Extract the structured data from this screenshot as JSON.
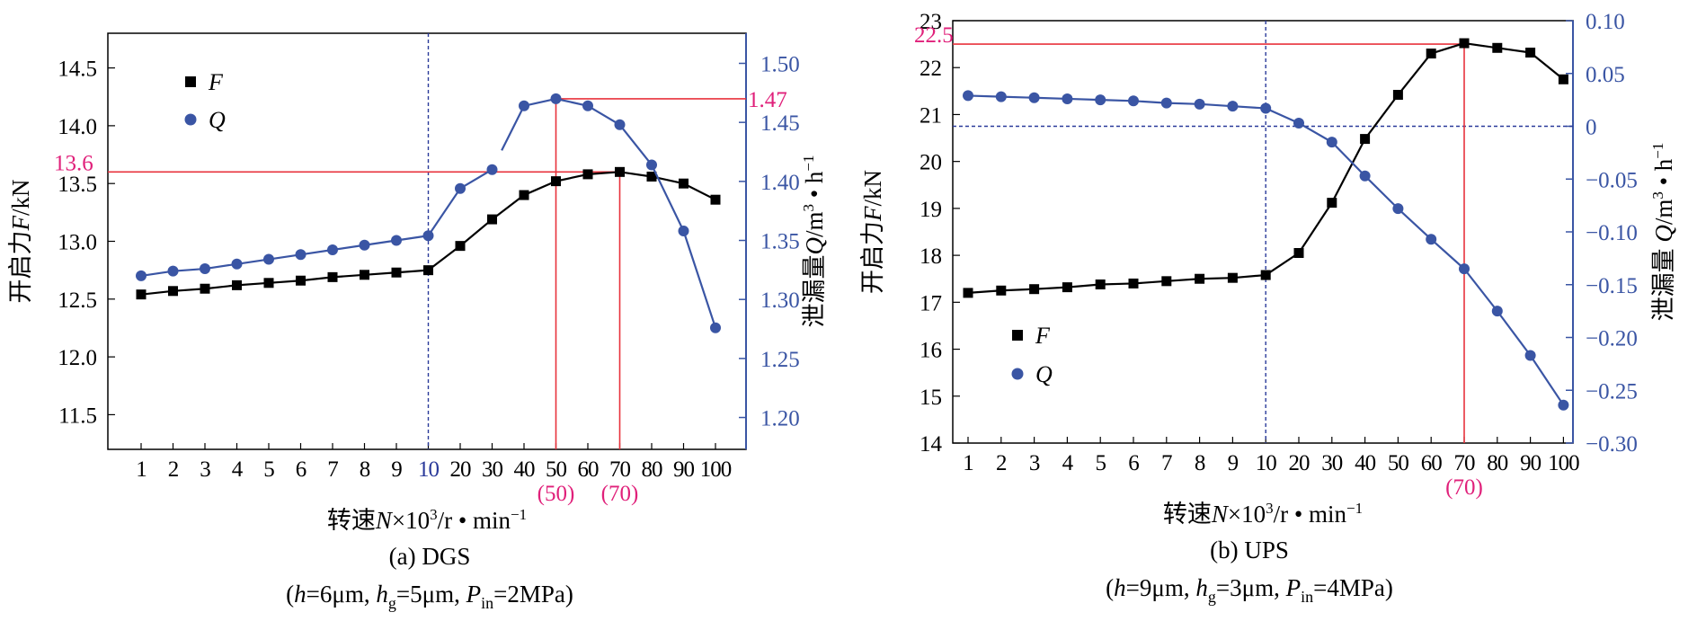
{
  "colors": {
    "f_series": "#000000",
    "q_series": "#3a55a4",
    "ref_line": "#e8323c",
    "ref_label": "#e0207a",
    "right_axis": "#3a55a4",
    "divider": "#2a3a9a"
  },
  "chart_data": [
    {
      "type": "line",
      "caption": "(a) DGS",
      "params": {
        "open": "(",
        "h_var": "h",
        "h_val": "=6μm, ",
        "hg_var": "h",
        "hg_sub": "g",
        "hg_val": "=5μm, ",
        "p_var": "P",
        "p_sub": "in",
        "p_val": "=2MPa)"
      },
      "xlabel": {
        "pre": "转速",
        "var": "N",
        "mid": "×10",
        "sup": "3",
        "post": "/r • min",
        "sup2": "−1"
      },
      "ylabel_left": {
        "pre": "开启力",
        "var": "F",
        "post": "/kN"
      },
      "ylabel_right": {
        "pre": "泄漏量",
        "var": "Q",
        "mid": "/m",
        "sup": "3",
        "post": " • h",
        "sup2": "−1"
      },
      "x_categories": [
        "1",
        "2",
        "3",
        "4",
        "5",
        "6",
        "7",
        "8",
        "9",
        "10",
        "20",
        "30",
        "40",
        "50",
        "60",
        "70",
        "80",
        "90",
        "100"
      ],
      "highlight_category": "10",
      "y_left_ticks": [
        "11.5",
        "12.0",
        "12.5",
        "13.0",
        "13.5",
        "14.0",
        "14.5"
      ],
      "y_left_range": [
        11.2,
        14.8
      ],
      "y_right_ticks": [
        "1.20",
        "1.25",
        "1.30",
        "1.35",
        "1.40",
        "1.45",
        "1.50"
      ],
      "y_right_range": [
        1.173,
        1.5255
      ],
      "legend": [
        {
          "series": "F",
          "label": "F"
        },
        {
          "series": "Q",
          "label": "Q"
        }
      ],
      "legend_position": "top-left",
      "series": [
        {
          "name": "F",
          "axis": "left",
          "marker": "square",
          "values": [
            12.54,
            12.57,
            12.59,
            12.62,
            12.64,
            12.66,
            12.69,
            12.71,
            12.73,
            12.75,
            12.96,
            13.19,
            13.4,
            13.52,
            13.58,
            13.6,
            13.56,
            13.5,
            13.36
          ]
        },
        {
          "name": "Q",
          "axis": "right",
          "marker": "circle",
          "values": [
            1.32,
            1.324,
            1.326,
            1.33,
            1.334,
            1.338,
            1.342,
            1.346,
            1.35,
            1.354,
            1.394,
            1.41,
            1.464,
            1.47,
            1.464,
            1.448,
            1.414,
            1.358,
            1.276
          ],
          "gap_after_category": "30"
        }
      ],
      "ref_lines": {
        "hlines": [
          {
            "axis": "left",
            "value": 13.6,
            "label": "13.6",
            "label_side": "left",
            "from_category": null,
            "to_category": "70"
          },
          {
            "axis": "right",
            "value": 1.47,
            "label": "1.47",
            "label_side": "right",
            "from_category": "50",
            "to_category": null
          }
        ],
        "vlines": [
          {
            "category": "50",
            "label": "(50)",
            "top_series": "Q"
          },
          {
            "category": "70",
            "label": "(70)",
            "top_series": "F"
          }
        ],
        "dashed_vline_category": "10"
      }
    },
    {
      "type": "line",
      "caption": "(b) UPS",
      "params": {
        "open": "(",
        "h_var": "h",
        "h_val": "=9μm, ",
        "hg_var": "h",
        "hg_sub": "g",
        "hg_val": "=3μm, ",
        "p_var": "P",
        "p_sub": "in",
        "p_val": "=4MPa)"
      },
      "xlabel": {
        "pre": "转速",
        "var": "N",
        "mid": "×10",
        "sup": "3",
        "post": "/r • min",
        "sup2": "−1"
      },
      "ylabel_left": {
        "pre": "开启力",
        "var": "F",
        "post": "/kN"
      },
      "ylabel_right": {
        "pre": "泄漏量 ",
        "var": "Q",
        "mid": "/m",
        "sup": "3",
        "post": " • h",
        "sup2": "−1"
      },
      "x_categories": [
        "1",
        "2",
        "3",
        "4",
        "5",
        "6",
        "7",
        "8",
        "9",
        "10",
        "20",
        "30",
        "40",
        "50",
        "60",
        "70",
        "80",
        "90",
        "100"
      ],
      "highlight_category": null,
      "y_left_ticks": [
        "14",
        "15",
        "16",
        "17",
        "18",
        "19",
        "20",
        "21",
        "22",
        "23"
      ],
      "y_left_range": [
        14,
        23
      ],
      "y_right_ticks": [
        "−0.30",
        "−0.25",
        "−0.20",
        "−0.15",
        "−0.10",
        "−0.05",
        "0",
        "0.05",
        "0.10"
      ],
      "y_right_ticks_values": [
        -0.3,
        -0.25,
        -0.2,
        -0.15,
        -0.1,
        -0.05,
        0,
        0.05,
        0.1
      ],
      "y_right_range": [
        -0.3,
        0.1
      ],
      "legend": [
        {
          "series": "F",
          "label": "F"
        },
        {
          "series": "Q",
          "label": "Q"
        }
      ],
      "legend_position": "bottom-left",
      "series": [
        {
          "name": "F",
          "axis": "left",
          "marker": "square",
          "values": [
            17.2,
            17.25,
            17.28,
            17.32,
            17.38,
            17.4,
            17.45,
            17.5,
            17.52,
            17.58,
            18.05,
            19.12,
            20.48,
            21.42,
            22.3,
            22.52,
            22.42,
            22.32,
            21.75
          ]
        },
        {
          "name": "Q",
          "axis": "right",
          "marker": "circle",
          "values": [
            0.029,
            0.028,
            0.027,
            0.026,
            0.025,
            0.024,
            0.022,
            0.021,
            0.019,
            0.017,
            0.003,
            -0.015,
            -0.047,
            -0.078,
            -0.107,
            -0.135,
            -0.175,
            -0.217,
            -0.264
          ]
        }
      ],
      "ref_lines": {
        "hlines": [
          {
            "axis": "left",
            "value": 22.5,
            "label": "22.5",
            "label_side": "left",
            "from_category": null,
            "to_category": "70"
          }
        ],
        "vlines": [
          {
            "category": "70",
            "label": "(70)",
            "top_series": "F"
          }
        ],
        "dashed_vline_category": "10",
        "dashed_hline_right_value": 0
      }
    }
  ]
}
